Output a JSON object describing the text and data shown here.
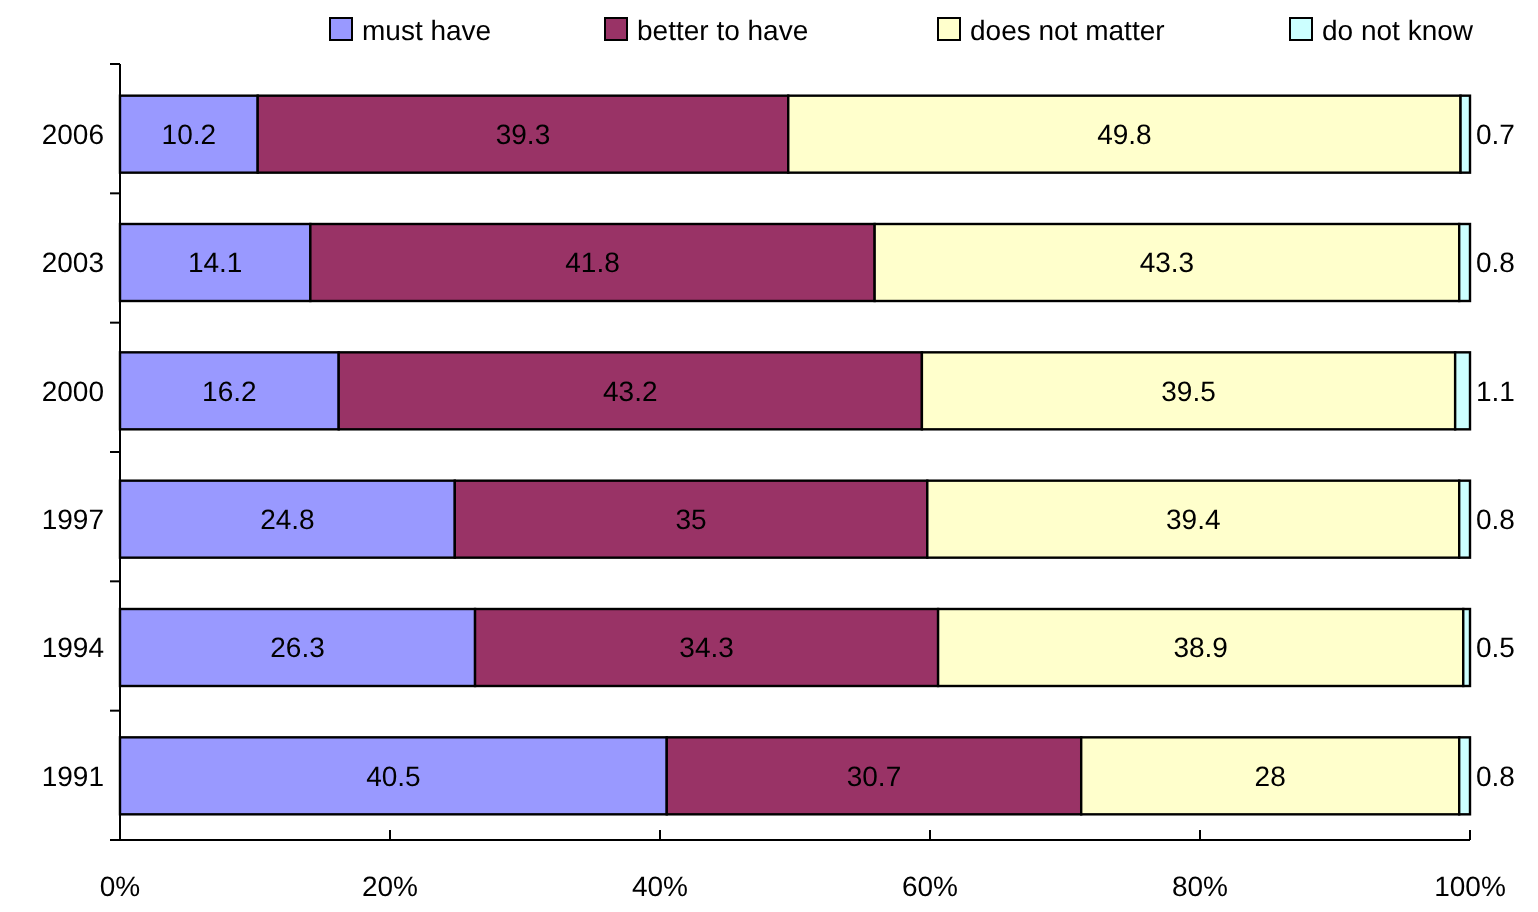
{
  "chart_data": {
    "type": "bar",
    "orientation": "horizontal",
    "stacked": true,
    "categories": [
      "2006",
      "2003",
      "2000",
      "1997",
      "1994",
      "1991"
    ],
    "series": [
      {
        "name": "must have",
        "color": "#9999ff",
        "values": [
          10.2,
          14.1,
          16.2,
          24.8,
          26.3,
          40.5
        ]
      },
      {
        "name": "better to have",
        "color": "#993366",
        "values": [
          39.3,
          41.8,
          43.2,
          35,
          34.3,
          30.7
        ]
      },
      {
        "name": "does not matter",
        "color": "#ffffcc",
        "values": [
          49.8,
          43.3,
          39.5,
          39.4,
          38.9,
          28
        ]
      },
      {
        "name": "do not know",
        "color": "#ccffff",
        "values": [
          0.7,
          0.8,
          1.1,
          0.8,
          0.5,
          0.8
        ]
      }
    ],
    "xlim": [
      0,
      100
    ],
    "xticks": [
      {
        "value": 0,
        "label": "0%"
      },
      {
        "value": 20,
        "label": "20%"
      },
      {
        "value": 40,
        "label": "40%"
      },
      {
        "value": 60,
        "label": "60%"
      },
      {
        "value": 80,
        "label": "80%"
      },
      {
        "value": 100,
        "label": "100%"
      }
    ],
    "data_labels": true,
    "legend": "top",
    "grid": false
  }
}
